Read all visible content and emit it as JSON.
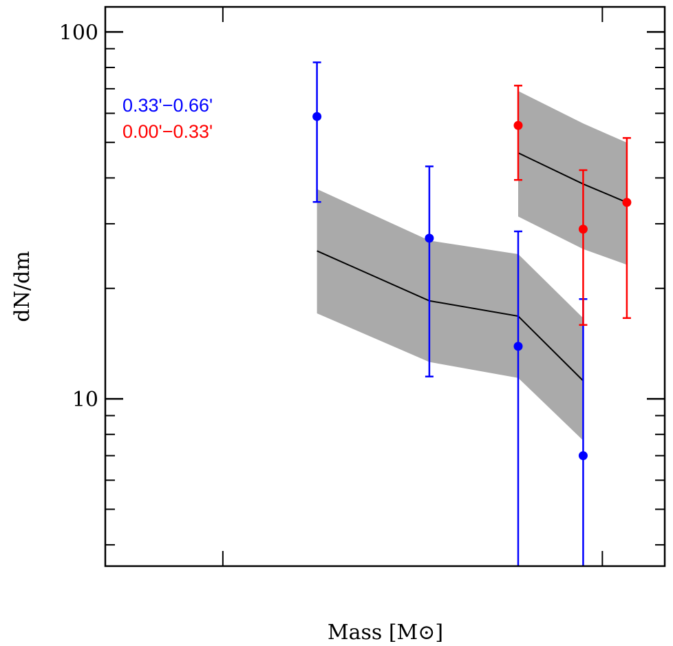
{
  "chart_data": {
    "type": "scatter",
    "title": "",
    "xlabel": "Mass [M⊙]",
    "ylabel": "dN/dm",
    "xscale": "log",
    "yscale": "log",
    "xlim": [
      0.049,
      1.46
    ],
    "ylim": [
      3.5,
      117
    ],
    "x_major_ticks": [
      0.1,
      1
    ],
    "y_major_ticks": [
      10,
      100
    ],
    "y_tick_labels": [
      "10",
      "100"
    ],
    "y_minor_ticks": [
      4,
      5,
      6,
      7,
      8,
      9,
      20,
      30,
      40,
      50,
      60,
      70,
      80,
      90
    ],
    "grid": false,
    "legend_placement": "upper-left",
    "series": [
      {
        "name": "0.33'−0.66'",
        "color": "#0000ff",
        "x": [
          0.177,
          0.35,
          0.6,
          0.89
        ],
        "y": [
          58.8,
          27.4,
          13.9,
          7.0
        ],
        "yerr_upper": [
          82.6,
          43.0,
          28.6,
          18.7
        ],
        "yerr_lower": [
          34.4,
          11.5,
          3.0,
          3.0
        ],
        "model": {
          "x": [
            0.177,
            0.35,
            0.6,
            0.89
          ],
          "y": [
            25.3,
            18.5,
            16.8,
            11.2
          ],
          "band_upper": [
            37.3,
            27.0,
            24.8,
            16.6
          ],
          "band_lower": [
            17.1,
            12.6,
            11.4,
            7.7
          ]
        }
      },
      {
        "name": "0.00'−0.33'",
        "color": "#ff0000",
        "x": [
          0.6,
          0.89,
          1.16
        ],
        "y": [
          55.6,
          29.0,
          34.3
        ],
        "yerr_upper": [
          71.4,
          42.0,
          51.4
        ],
        "yerr_lower": [
          39.5,
          15.9,
          16.6
        ],
        "model": {
          "x": [
            0.6,
            0.89,
            1.16
          ],
          "y": [
            46.8,
            38.5,
            34.3
          ],
          "band_upper": [
            69.0,
            56.3,
            49.9
          ],
          "band_lower": [
            31.4,
            25.6,
            23.2
          ]
        }
      }
    ],
    "band_color": "#aaaaaa",
    "model_line_color": "#000000"
  }
}
